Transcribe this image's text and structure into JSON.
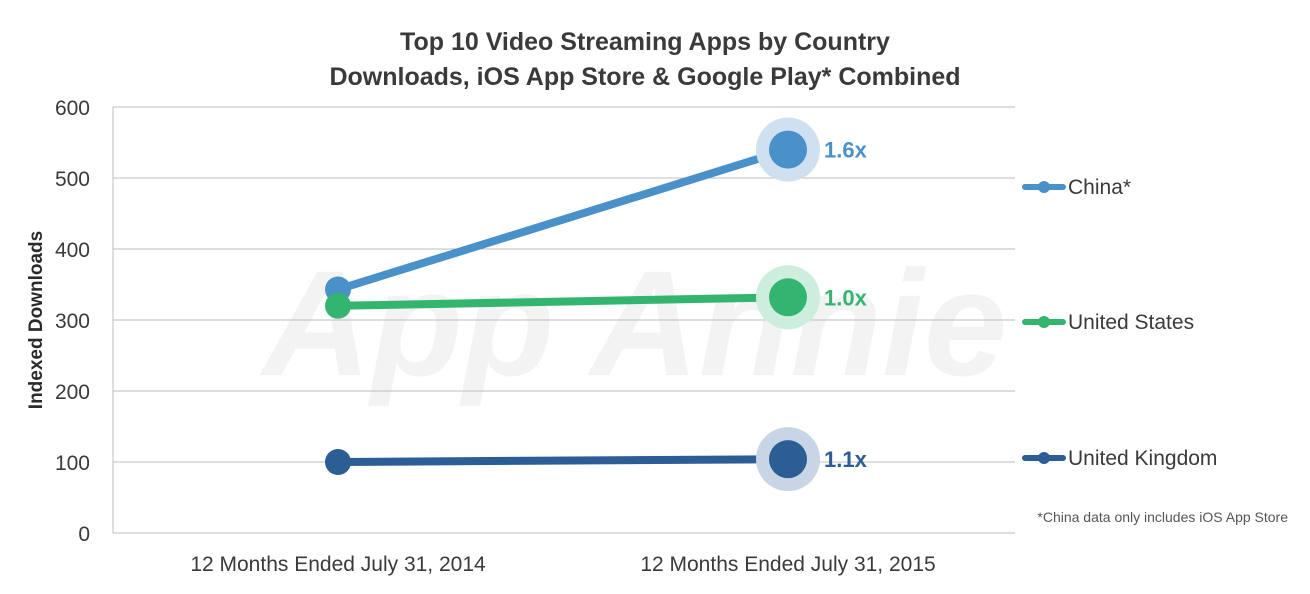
{
  "chart_data": {
    "type": "line",
    "title": [
      "Top 10 Video Streaming Apps by Country",
      "Downloads, iOS App Store & Google Play* Combined"
    ],
    "xlabel": "",
    "ylabel": "Indexed Downloads",
    "categories": [
      "12 Months Ended July 31, 2014",
      "12 Months Ended July 31, 2015"
    ],
    "ylim": [
      0,
      600
    ],
    "yticks": [
      0,
      100,
      200,
      300,
      400,
      500,
      600
    ],
    "grid": true,
    "legend_position": "right",
    "series": [
      {
        "name": "China*",
        "values": [
          343,
          540
        ],
        "color": "#4a90c9",
        "halo": "#cfe0f0",
        "ratio_label": "1.6x"
      },
      {
        "name": "United States",
        "values": [
          320,
          332
        ],
        "color": "#33b56f",
        "halo": "#cdeedd",
        "ratio_label": "1.0x"
      },
      {
        "name": "United Kingdom",
        "values": [
          100,
          104
        ],
        "color": "#2c5d94",
        "halo": "#c7d5e6",
        "ratio_label": "1.1x"
      }
    ],
    "footnote": "*China data only includes iOS App Store",
    "watermark": "App Annie"
  }
}
